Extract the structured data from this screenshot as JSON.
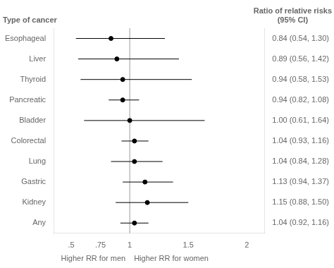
{
  "chart_data": {
    "type": "forest",
    "categories": [
      "Esophageal",
      "Liver",
      "Thyroid",
      "Pancreatic",
      "Bladder",
      "Colorectal",
      "Lung",
      "Gastric",
      "Kidney",
      "Any"
    ],
    "values": [
      0.84,
      0.89,
      0.94,
      0.94,
      1.0,
      1.04,
      1.04,
      1.13,
      1.15,
      1.04
    ],
    "ci_lower": [
      0.54,
      0.56,
      0.58,
      0.82,
      0.61,
      0.93,
      0.84,
      0.94,
      0.88,
      0.92
    ],
    "ci_upper": [
      1.3,
      1.42,
      1.53,
      1.08,
      1.64,
      1.16,
      1.28,
      1.37,
      1.5,
      1.16
    ],
    "ci_labels": [
      "0.84 (0.54, 1.30)",
      "0.89 (0.56, 1.42)",
      "0.94 (0.58, 1.53)",
      "0.94 (0.82, 1.08)",
      "1.00 (0.61, 1.64)",
      "1.04 (0.93, 1.16)",
      "1.04 (0.84, 1.28)",
      "1.13 (0.94, 1.37)",
      "1.15 (0.88, 1.50)",
      "1.04 (0.92, 1.16)"
    ],
    "ylabel": "Type of cancer",
    "ci_header": "Ratio of relative risks\n(95% CI)",
    "xlabel_left": "Higher RR for men",
    "xlabel_right": "Higher RR for women",
    "xlim": [
      0.35,
      2.15
    ],
    "xticks": [
      {
        "value": 0.5,
        "label": ".5"
      },
      {
        "value": 0.75,
        "label": ".75"
      },
      1,
      1.5,
      2
    ],
    "reference_line": 1,
    "color": "#000000",
    "grid": false
  }
}
